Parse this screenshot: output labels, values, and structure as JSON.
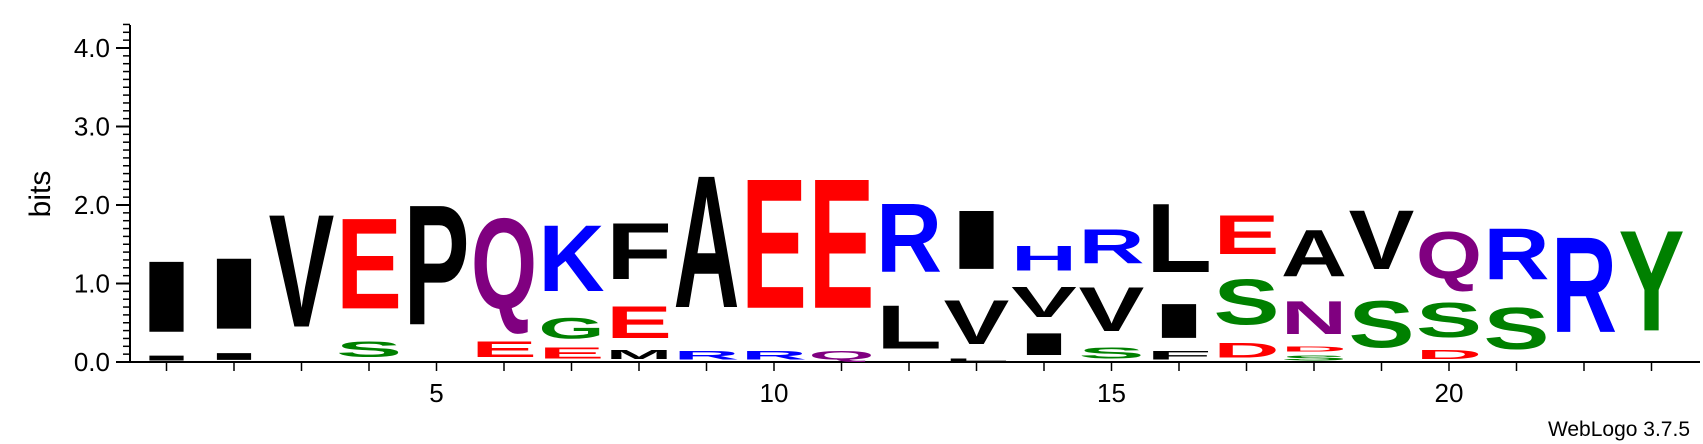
{
  "chart_data": {
    "type": "sequence-logo",
    "ylabel": "bits",
    "ylim": [
      0,
      4.3
    ],
    "y_ticks": [
      {
        "value": 0.0,
        "label": "0.0"
      },
      {
        "value": 1.0,
        "label": "1.0"
      },
      {
        "value": 2.0,
        "label": "2.0"
      },
      {
        "value": 3.0,
        "label": "3.0"
      },
      {
        "value": 4.0,
        "label": "4.0"
      }
    ],
    "x_ticks": [
      {
        "value": 5,
        "label": "5"
      },
      {
        "value": 10,
        "label": "10"
      },
      {
        "value": 15,
        "label": "15"
      },
      {
        "value": 20,
        "label": "20"
      }
    ],
    "credit": "WebLogo 3.7.5",
    "colors": {
      "black": "#000000",
      "red": "#ff0000",
      "blue": "#0000ff",
      "green": "#008000",
      "purple": "#800080"
    },
    "positions": [
      {
        "pos": 1,
        "stacks": [
          {
            "letter": "I",
            "height": 0.1,
            "color": "black"
          },
          {
            "letter": "I",
            "height": 1.45,
            "color": "black"
          }
        ]
      },
      {
        "pos": 2,
        "stacks": [
          {
            "letter": "I",
            "height": 0.14,
            "color": "black"
          },
          {
            "letter": "I",
            "height": 1.45,
            "color": "black"
          }
        ]
      },
      {
        "pos": 3,
        "stacks": [
          {
            "letter": "V",
            "height": 2.3,
            "color": "black"
          }
        ]
      },
      {
        "pos": 4,
        "stacks": [
          {
            "letter": "S",
            "height": 0.32,
            "color": "green"
          },
          {
            "letter": "E",
            "height": 1.85,
            "color": "red"
          }
        ]
      },
      {
        "pos": 5,
        "stacks": [
          {
            "letter": "P",
            "height": 2.45,
            "color": "black"
          }
        ]
      },
      {
        "pos": 6,
        "stacks": [
          {
            "letter": "E",
            "height": 0.32,
            "color": "red"
          },
          {
            "letter": "Q",
            "height": 1.85,
            "color": "purple"
          }
        ]
      },
      {
        "pos": 7,
        "stacks": [
          {
            "letter": "E",
            "height": 0.22,
            "color": "red"
          },
          {
            "letter": "G",
            "height": 0.42,
            "color": "green"
          },
          {
            "letter": "K",
            "height": 1.35,
            "color": "blue"
          }
        ]
      },
      {
        "pos": 8,
        "stacks": [
          {
            "letter": "M",
            "height": 0.18,
            "color": "black"
          },
          {
            "letter": "E",
            "height": 0.65,
            "color": "red"
          },
          {
            "letter": "F",
            "height": 1.15,
            "color": "black"
          }
        ]
      },
      {
        "pos": 9,
        "stacks": [
          {
            "letter": "R",
            "height": 0.17,
            "color": "blue"
          },
          {
            "letter": "A",
            "height": 2.7,
            "color": "black"
          }
        ]
      },
      {
        "pos": 10,
        "stacks": [
          {
            "letter": "R",
            "height": 0.17,
            "color": "blue"
          },
          {
            "letter": "E",
            "height": 2.65,
            "color": "red"
          }
        ]
      },
      {
        "pos": 11,
        "stacks": [
          {
            "letter": "Q",
            "height": 0.17,
            "color": "purple"
          },
          {
            "letter": "E",
            "height": 2.65,
            "color": "red"
          }
        ]
      },
      {
        "pos": 12,
        "stacks": [
          {
            "letter": "L",
            "height": 0.88,
            "color": "black"
          },
          {
            "letter": "R",
            "height": 1.4,
            "color": "blue"
          }
        ]
      },
      {
        "pos": 13,
        "stacks": [
          {
            "letter": "L",
            "height": 0.05,
            "color": "black"
          },
          {
            "letter": "V",
            "height": 0.9,
            "color": "black"
          },
          {
            "letter": "I",
            "height": 1.2,
            "color": "black"
          }
        ]
      },
      {
        "pos": 14,
        "stacks": [
          {
            "letter": "I",
            "height": 0.45,
            "color": "black"
          },
          {
            "letter": "V",
            "height": 0.62,
            "color": "black"
          },
          {
            "letter": "H",
            "height": 0.5,
            "color": "blue"
          }
        ]
      },
      {
        "pos": 15,
        "stacks": [
          {
            "letter": "S",
            "height": 0.22,
            "color": "green"
          },
          {
            "letter": "V",
            "height": 0.9,
            "color": "black"
          },
          {
            "letter": "R",
            "height": 0.7,
            "color": "blue"
          }
        ]
      },
      {
        "pos": 16,
        "stacks": [
          {
            "letter": "F",
            "height": 0.17,
            "color": "black"
          },
          {
            "letter": "I",
            "height": 0.7,
            "color": "black"
          },
          {
            "letter": "L",
            "height": 1.4,
            "color": "black"
          }
        ]
      },
      {
        "pos": 17,
        "stacks": [
          {
            "letter": "D",
            "height": 0.3,
            "color": "red"
          },
          {
            "letter": "S",
            "height": 0.92,
            "color": "green"
          },
          {
            "letter": "E",
            "height": 0.8,
            "color": "red"
          }
        ]
      },
      {
        "pos": 18,
        "stacks": [
          {
            "letter": "S",
            "height": 0.11,
            "color": "green"
          },
          {
            "letter": "D",
            "height": 0.11,
            "color": "red"
          },
          {
            "letter": "N",
            "height": 0.68,
            "color": "purple"
          },
          {
            "letter": "A",
            "height": 0.95,
            "color": "black"
          }
        ]
      },
      {
        "pos": 19,
        "stacks": [
          {
            "letter": "S",
            "height": 0.95,
            "color": "green"
          },
          {
            "letter": "V",
            "height": 1.2,
            "color": "black"
          }
        ]
      },
      {
        "pos": 20,
        "stacks": [
          {
            "letter": "D",
            "height": 0.18,
            "color": "red"
          },
          {
            "letter": "S",
            "height": 0.7,
            "color": "green"
          },
          {
            "letter": "Q",
            "height": 0.95,
            "color": "purple"
          }
        ]
      },
      {
        "pos": 21,
        "stacks": [
          {
            "letter": "S",
            "height": 0.85,
            "color": "green"
          },
          {
            "letter": "R",
            "height": 1.05,
            "color": "blue"
          }
        ]
      },
      {
        "pos": 22,
        "stacks": [
          {
            "letter": "R",
            "height": 1.95,
            "color": "blue"
          }
        ]
      },
      {
        "pos": 23,
        "stacks": [
          {
            "letter": "Y",
            "height": 2.05,
            "color": "green"
          }
        ]
      }
    ]
  }
}
